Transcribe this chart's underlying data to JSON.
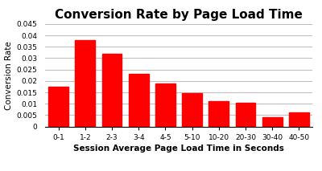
{
  "title": "Conversion Rate by Page Load Time",
  "xlabel": "Session Average Page Load Time in Seconds",
  "ylabel": "Conversion Rate",
  "categories": [
    "0-1",
    "1-2",
    "2-3",
    "3-4",
    "4-5",
    "5-10",
    "10-20",
    "20-30",
    "30-40",
    "40-50"
  ],
  "values": [
    0.0175,
    0.038,
    0.032,
    0.023,
    0.019,
    0.0147,
    0.0113,
    0.0105,
    0.0042,
    0.0063
  ],
  "bar_color": "#ff0000",
  "ylim": [
    0,
    0.045
  ],
  "yticks": [
    0,
    0.005,
    0.01,
    0.015,
    0.02,
    0.025,
    0.03,
    0.035,
    0.04,
    0.045
  ],
  "background_color": "#ffffff",
  "grid_color": "#c0c0c0",
  "title_fontsize": 11,
  "axis_label_fontsize": 7.5,
  "tick_fontsize": 6.5
}
